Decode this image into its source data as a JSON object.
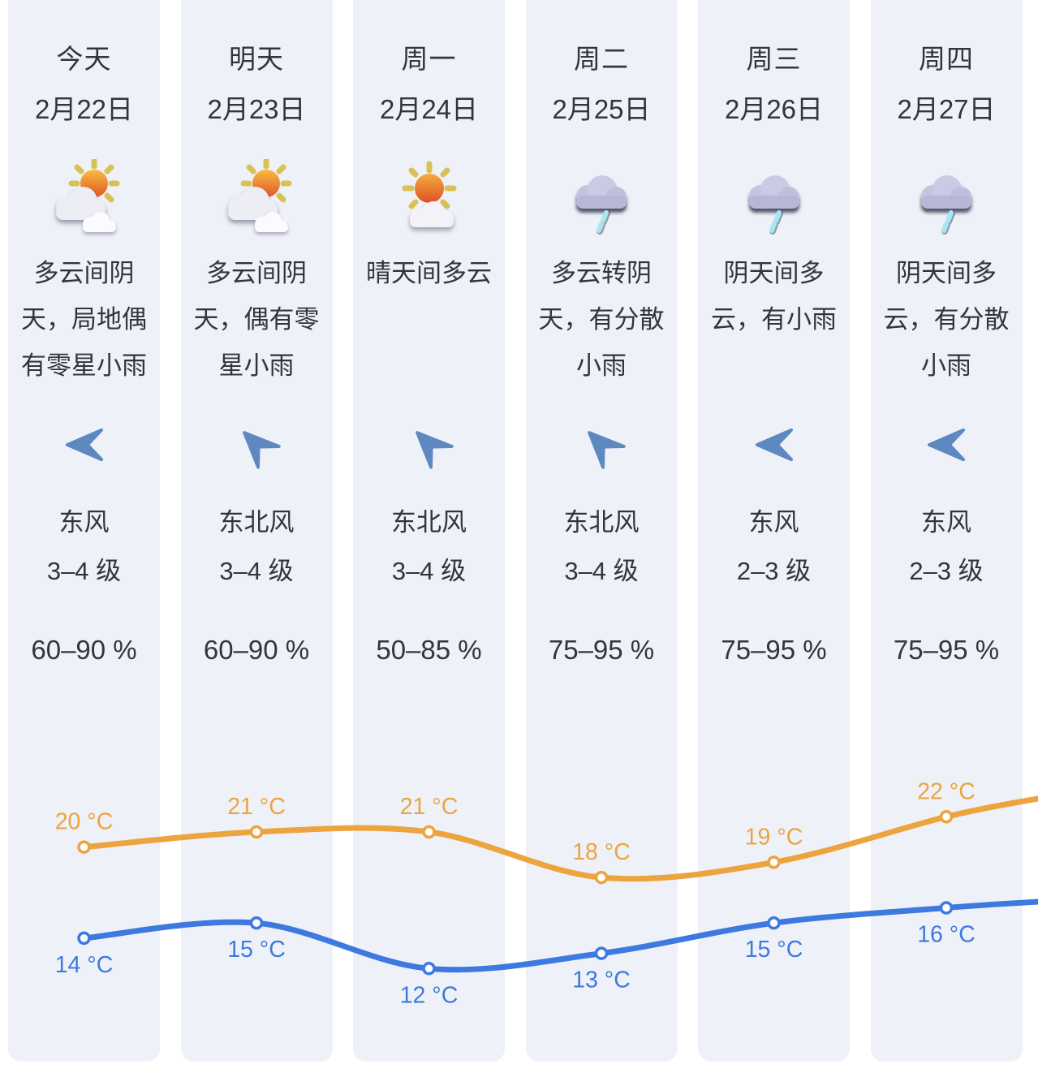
{
  "columns": [
    {
      "day": "今天",
      "date": "2月22日",
      "icon": "partly-cloudy",
      "desc": "多云间阴\n天，局地偶\n有零星小雨",
      "wind_dir": "东风",
      "wind_level": "3–4 级",
      "arrow_dir": "w",
      "humidity": "60–90 %",
      "high": 20,
      "low": 14
    },
    {
      "day": "明天",
      "date": "2月23日",
      "icon": "partly-cloudy",
      "desc": "多云间阴\n天，偶有零\n星小雨",
      "wind_dir": "东北风",
      "wind_level": "3–4 级",
      "arrow_dir": "sw",
      "humidity": "60–90 %",
      "high": 21,
      "low": 15
    },
    {
      "day": "周一",
      "date": "2月24日",
      "icon": "mostly-sunny",
      "desc": "晴天间多云",
      "wind_dir": "东北风",
      "wind_level": "3–4 级",
      "arrow_dir": "sw",
      "humidity": "50–85 %",
      "high": 21,
      "low": 12
    },
    {
      "day": "周二",
      "date": "2月25日",
      "icon": "rain",
      "desc": "多云转阴\n天，有分散\n小雨",
      "wind_dir": "东北风",
      "wind_level": "3–4 级",
      "arrow_dir": "sw",
      "humidity": "75–95 %",
      "high": 18,
      "low": 13
    },
    {
      "day": "周三",
      "date": "2月26日",
      "icon": "rain",
      "desc": "阴天间多\n云，有小雨",
      "wind_dir": "东风",
      "wind_level": "2–3 级",
      "arrow_dir": "w",
      "humidity": "75–95 %",
      "high": 19,
      "low": 15
    },
    {
      "day": "周四",
      "date": "2月27日",
      "icon": "rain",
      "desc": "阴天间多\n云，有分散\n小雨",
      "wind_dir": "东风",
      "wind_level": "2–3 级",
      "arrow_dir": "w",
      "humidity": "75–95 %",
      "high": 22,
      "low": 16
    }
  ],
  "chart_data": {
    "type": "line",
    "categories": [
      "今天",
      "明天",
      "周一",
      "周二",
      "周三",
      "周四"
    ],
    "series": [
      {
        "name": "high-temperature",
        "unit": "°C",
        "color": "#ECA43F",
        "values": [
          20,
          21,
          21,
          18,
          19,
          22
        ]
      },
      {
        "name": "low-temperature",
        "unit": "°C",
        "color": "#3D79DE",
        "values": [
          14,
          15,
          12,
          13,
          15,
          16
        ]
      }
    ],
    "point_labels": true,
    "grid": false,
    "axes_hidden": true,
    "legend": "none"
  }
}
